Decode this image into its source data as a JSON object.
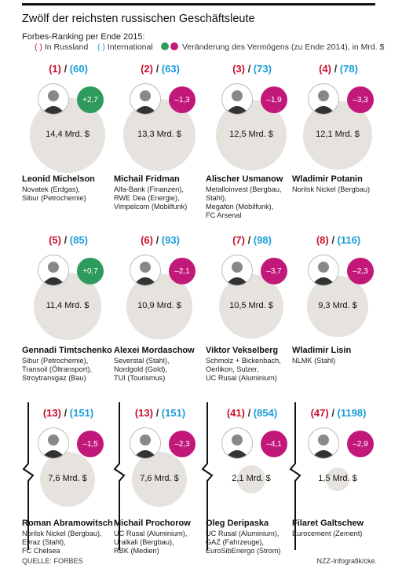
{
  "header": {
    "title": "Zwölf der reichsten russischen Geschäftsleute",
    "subtitle": "Forbes-Ranking per Ende 2015:",
    "legend_russia": "In Russland",
    "legend_international": "International",
    "legend_change": "Veränderung des Vermögens (zu Ende 2014), in Mrd. $"
  },
  "colors": {
    "positive": "#2e9a5c",
    "negative": "#c2187a",
    "russia": "#c8102e",
    "international": "#1a9dd9",
    "circle": "#e6e3de"
  },
  "people": [
    {
      "russia": "(1)",
      "intl": "(60)",
      "wealth": "14,4 Mrd. $",
      "wealth_value": 14.4,
      "change": "+2,7",
      "sign": "pos",
      "name": "Leonid Michelson",
      "companies": [
        "Novatek (Erdgas),",
        "Sibur (Petrochemie)"
      ]
    },
    {
      "russia": "(2)",
      "intl": "(63)",
      "wealth": "13,3 Mrd. $",
      "wealth_value": 13.3,
      "change": "–1,3",
      "sign": "neg",
      "name": "Michail Fridman",
      "companies": [
        "Alfa-Bank (Finanzen),",
        "RWE Dea (Energie),",
        "Vimpelcom (Mobilfunk)"
      ]
    },
    {
      "russia": "(3)",
      "intl": "(73)",
      "wealth": "12,5 Mrd. $",
      "wealth_value": 12.5,
      "change": "–1,9",
      "sign": "neg",
      "name": "Alischer Usmanow",
      "companies": [
        "Metalloinvest (Bergbau,",
        "Stahl),",
        "Megafon (Mobilfunk),",
        "FC Arsenal"
      ]
    },
    {
      "russia": "(4)",
      "intl": "(78)",
      "wealth": "12,1 Mrd. $",
      "wealth_value": 12.1,
      "change": "–3,3",
      "sign": "neg",
      "name": "Wladimir Potanin",
      "companies": [
        "Norilsk Nickel (Bergbau)"
      ]
    },
    {
      "russia": "(5)",
      "intl": "(85)",
      "wealth": "11,4 Mrd. $",
      "wealth_value": 11.4,
      "change": "+0,7",
      "sign": "pos",
      "name": "Gennadi Timtschenko",
      "companies": [
        "Sibur (Petrochemie),",
        "Transoil (Öltransport),",
        "Stroytransgaz (Bau)"
      ]
    },
    {
      "russia": "(6)",
      "intl": "(93)",
      "wealth": "10,9 Mrd. $",
      "wealth_value": 10.9,
      "change": "–2,1",
      "sign": "neg",
      "name": "Alexei Mordaschow",
      "companies": [
        "Severstal (Stahl),",
        "Nordgold (Gold),",
        "TUI (Tourismus)"
      ]
    },
    {
      "russia": "(7)",
      "intl": "(98)",
      "wealth": "10,5 Mrd. $",
      "wealth_value": 10.5,
      "change": "–3,7",
      "sign": "neg",
      "name": "Viktor Vekselberg",
      "companies": [
        "Schmolz + Bickenbach,",
        "Oerlikon, Sulzer,",
        "UC Rusal (Aluminium)"
      ]
    },
    {
      "russia": "(8)",
      "intl": "(116)",
      "wealth": "9,3 Mrd. $",
      "wealth_value": 9.3,
      "change": "–2,3",
      "sign": "neg",
      "name": "Wladimir Lisin",
      "companies": [
        "NLMK (Stahl)"
      ]
    },
    {
      "russia": "(13)",
      "intl": "(151)",
      "wealth": "7,6 Mrd. $",
      "wealth_value": 7.6,
      "change": "–1,5",
      "sign": "neg",
      "name": "Roman Abramowitsch",
      "companies": [
        "Norilsk Nickel (Bergbau),",
        "Evraz (Stahl),",
        "FC Chelsea"
      ]
    },
    {
      "russia": "(13)",
      "intl": "(151)",
      "wealth": "7,6 Mrd. $",
      "wealth_value": 7.6,
      "change": "–2,3",
      "sign": "neg",
      "name": "Michail Prochorow",
      "companies": [
        "UC Rusal (Aluminium),",
        "Uralkali (Bergbau),",
        "RBK (Medien)"
      ]
    },
    {
      "russia": "(41)",
      "intl": "(854)",
      "wealth": "2,1 Mrd. $",
      "wealth_value": 2.1,
      "change": "–4,1",
      "sign": "neg",
      "name": "Oleg Deripaska",
      "companies": [
        "UC Rusal (Aluminium),",
        "GAZ (Fahrzeuge),",
        "EuroSibEnergo (Strom)"
      ]
    },
    {
      "russia": "(47)",
      "intl": "(1198)",
      "wealth": "1,5 Mrd. $",
      "wealth_value": 1.5,
      "change": "–2,9",
      "sign": "neg",
      "name": "Filaret Galtschew",
      "companies": [
        "Eurocement (Zement)"
      ]
    }
  ],
  "footer": {
    "source": "QUELLE: FORBES",
    "credit": "NZZ-Infografik/cke."
  }
}
